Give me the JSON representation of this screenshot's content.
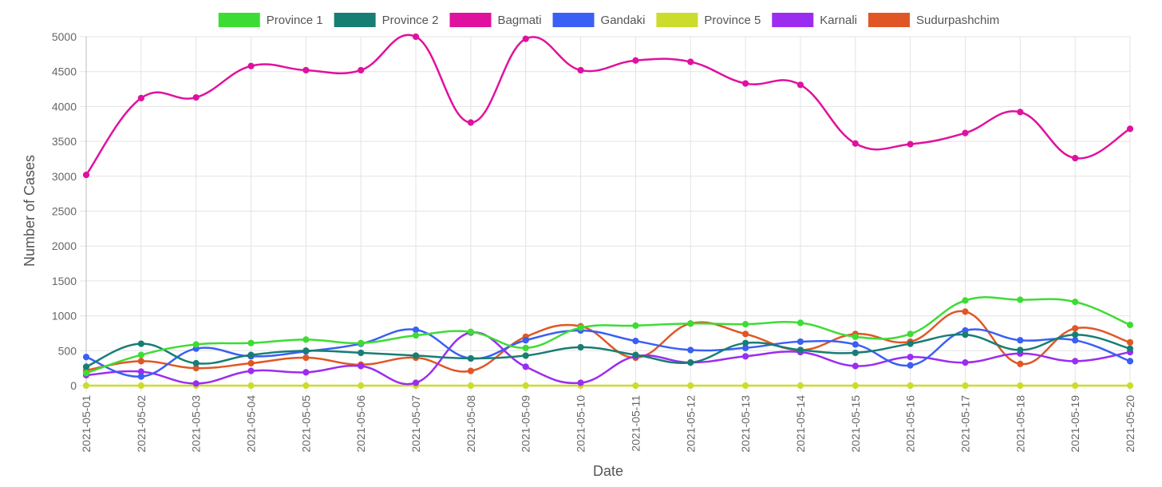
{
  "chart_data": {
    "type": "line",
    "title": "",
    "xlabel": "Date",
    "ylabel": "Number of Cases",
    "ylim": [
      0,
      5000
    ],
    "yticks": [
      "0",
      "500",
      "1000",
      "1500",
      "2000",
      "2500",
      "3000",
      "3500",
      "4000",
      "4500",
      "5000"
    ],
    "grid": true,
    "legend_position": "top",
    "categories": [
      "2021-05-01",
      "2021-05-02",
      "2021-05-03",
      "2021-05-04",
      "2021-05-05",
      "2021-05-06",
      "2021-05-07",
      "2021-05-08",
      "2021-05-09",
      "2021-05-10",
      "2021-05-11",
      "2021-05-12",
      "2021-05-13",
      "2021-05-14",
      "2021-05-15",
      "2021-05-16",
      "2021-05-17",
      "2021-05-18",
      "2021-05-19",
      "2021-05-20"
    ],
    "series": [
      {
        "name": "Province 1",
        "color": "#3ddc35",
        "values": [
          180,
          440,
          590,
          610,
          660,
          610,
          720,
          770,
          540,
          830,
          860,
          890,
          880,
          900,
          700,
          740,
          1220,
          1230,
          1200,
          870
        ]
      },
      {
        "name": "Province 2",
        "color": "#177e74",
        "values": [
          270,
          600,
          320,
          440,
          500,
          470,
          430,
          390,
          430,
          550,
          440,
          330,
          610,
          510,
          470,
          600,
          730,
          510,
          730,
          530
        ]
      },
      {
        "name": "Bagmati",
        "color": "#e0119e",
        "values": [
          3020,
          4120,
          4130,
          4580,
          4520,
          4520,
          5000,
          3770,
          4970,
          4520,
          4660,
          4640,
          4330,
          4310,
          3470,
          3460,
          3620,
          3920,
          3260,
          3680
        ]
      },
      {
        "name": "Gandaki",
        "color": "#3a5ff5",
        "values": [
          410,
          130,
          530,
          420,
          490,
          600,
          800,
          390,
          650,
          790,
          640,
          510,
          540,
          630,
          590,
          290,
          790,
          650,
          650,
          350
        ]
      },
      {
        "name": "Province 5",
        "color": "#ccdc2c",
        "values": [
          0,
          0,
          0,
          0,
          0,
          0,
          0,
          0,
          0,
          0,
          0,
          0,
          0,
          0,
          0,
          0,
          0,
          0,
          0,
          0
        ]
      },
      {
        "name": "Karnali",
        "color": "#9b2df0",
        "values": [
          150,
          200,
          30,
          210,
          190,
          280,
          40,
          760,
          270,
          40,
          420,
          330,
          420,
          480,
          280,
          410,
          330,
          460,
          350,
          480
        ]
      },
      {
        "name": "Sudurpashchim",
        "color": "#e05725",
        "values": [
          220,
          350,
          250,
          320,
          400,
          300,
          400,
          210,
          700,
          850,
          400,
          890,
          740,
          510,
          740,
          630,
          1060,
          310,
          820,
          620
        ]
      }
    ]
  }
}
